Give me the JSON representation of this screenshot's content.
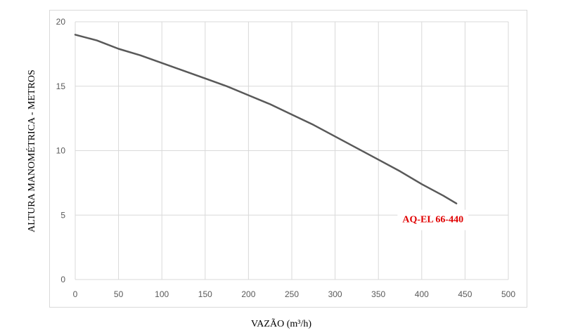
{
  "chart_data": {
    "type": "line",
    "title": "",
    "xlabel": "VAZÃO (m³/h)",
    "ylabel": "ALTURA MANOMÉTRICA - METROS",
    "xlim": [
      0,
      500
    ],
    "ylim": [
      0,
      20
    ],
    "xticks": [
      0,
      50,
      100,
      150,
      200,
      250,
      300,
      350,
      400,
      450,
      500
    ],
    "yticks": [
      0,
      5,
      10,
      15,
      20
    ],
    "grid": true,
    "series": [
      {
        "name": "AQ-EL 66-440",
        "color": "#595959",
        "label_color": "#e00000",
        "x": [
          0,
          25,
          50,
          75,
          100,
          125,
          150,
          175,
          200,
          225,
          250,
          275,
          300,
          325,
          350,
          375,
          400,
          425,
          440
        ],
        "y": [
          19.0,
          18.55,
          17.9,
          17.4,
          16.8,
          16.2,
          15.6,
          15.0,
          14.3,
          13.6,
          12.8,
          12.0,
          11.1,
          10.2,
          9.3,
          8.4,
          7.4,
          6.5,
          5.9
        ]
      }
    ]
  }
}
